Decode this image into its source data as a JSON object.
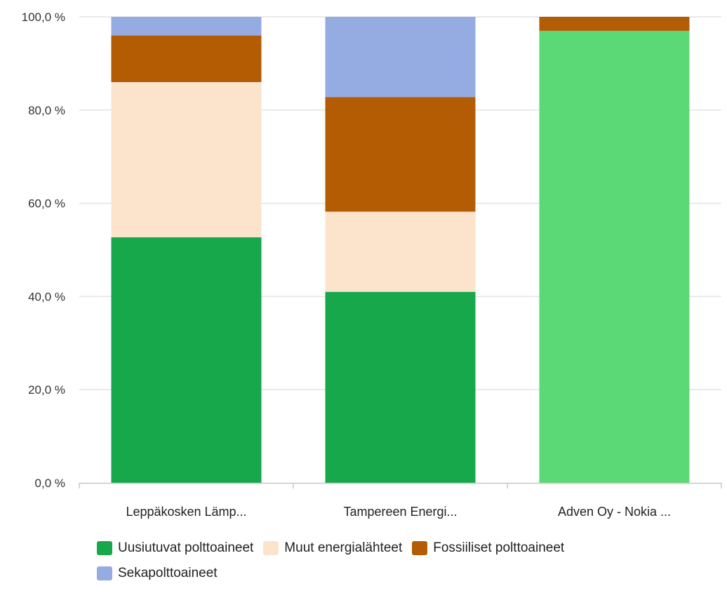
{
  "chart_data": {
    "type": "bar",
    "stacked": true,
    "categories": [
      "Leppäkosken Lämp...",
      "Tampereen Energi...",
      "Adven Oy - Nokia ..."
    ],
    "series": [
      {
        "name": "Uusiutuvat polttoaineet",
        "color": "#16a84a",
        "values": [
          52.7,
          41.0,
          0
        ]
      },
      {
        "name": "Muut energialähteet",
        "color": "#fce3cc",
        "values": [
          33.3,
          17.2,
          0
        ]
      },
      {
        "name": "Fossiiliset polttoaineet",
        "color": "#b35c04",
        "values": [
          10.0,
          24.6,
          3.0
        ]
      },
      {
        "name": "Sekapolttoaineet",
        "color": "#95ace2",
        "values": [
          4.0,
          17.2,
          0
        ]
      }
    ],
    "highlight_bar": {
      "category_index": 2,
      "series_index": 0,
      "color": "#5cd977",
      "value": 97.0
    },
    "ylim": [
      0,
      100
    ],
    "yticks": [
      "0,0 %",
      "20,0 %",
      "40,0 %",
      "60,0 %",
      "80,0 %",
      "100,0 %"
    ],
    "grid": true,
    "legend_position": "bottom"
  }
}
